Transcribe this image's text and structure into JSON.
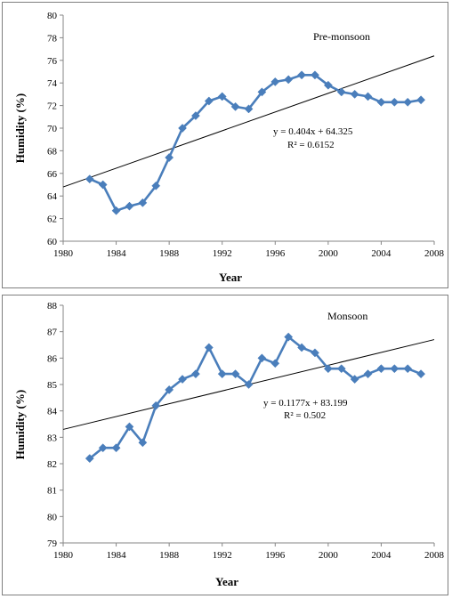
{
  "chart_data": [
    {
      "type": "line",
      "title": "",
      "series_label": "Pre-monsoon",
      "xlabel": "Year",
      "ylabel": "Humidity (%)",
      "xlim": [
        1980,
        2008
      ],
      "ylim": [
        60,
        80
      ],
      "xticks": [
        1980,
        1984,
        1988,
        1992,
        1996,
        2000,
        2004,
        2008
      ],
      "yticks": [
        60,
        62,
        64,
        66,
        68,
        70,
        72,
        74,
        76,
        78,
        80
      ],
      "series": [
        {
          "x": [
            1982,
            1983,
            1984,
            1985,
            1986,
            1987,
            1988,
            1989,
            1990,
            1991,
            1992,
            1993,
            1994,
            1995,
            1996,
            1997,
            1998,
            1999,
            2000,
            2001,
            2002,
            2003,
            2004,
            2005,
            2006,
            2007
          ],
          "values": [
            65.5,
            65.0,
            62.7,
            63.1,
            63.4,
            64.9,
            67.4,
            70.0,
            71.1,
            72.4,
            72.8,
            71.9,
            71.7,
            73.2,
            74.1,
            74.3,
            74.7,
            74.7,
            73.8,
            73.2,
            73.0,
            72.8,
            72.3,
            72.3,
            72.3,
            72.5
          ],
          "color": "#4a7ebb",
          "marker": "diamond"
        }
      ],
      "trendline": {
        "x": [
          1980,
          2008
        ],
        "values": [
          64.8,
          76.4
        ],
        "color": "#000000",
        "equation": "y = 0.404x + 64.325",
        "r2": "R² = 0.6152"
      },
      "grid": false,
      "legend": "none"
    },
    {
      "type": "line",
      "title": "",
      "series_label": "Monsoon",
      "xlabel": "Year",
      "ylabel": "Humidity (%)",
      "xlim": [
        1980,
        2008
      ],
      "ylim": [
        79,
        88
      ],
      "xticks": [
        1980,
        1984,
        1988,
        1992,
        1996,
        2000,
        2004,
        2008
      ],
      "yticks": [
        79,
        80,
        81,
        82,
        83,
        84,
        85,
        86,
        87,
        88
      ],
      "series": [
        {
          "x": [
            1982,
            1983,
            1984,
            1985,
            1986,
            1987,
            1988,
            1989,
            1990,
            1991,
            1992,
            1993,
            1994,
            1995,
            1996,
            1997,
            1998,
            1999,
            2000,
            2001,
            2002,
            2003,
            2004,
            2005,
            2006,
            2007
          ],
          "values": [
            82.2,
            82.6,
            82.6,
            83.4,
            82.8,
            84.2,
            84.8,
            85.2,
            85.4,
            86.4,
            85.4,
            85.4,
            85.0,
            86.0,
            85.8,
            86.8,
            86.4,
            86.2,
            85.6,
            85.6,
            85.2,
            85.4,
            85.6,
            85.6,
            85.6,
            85.4
          ],
          "color": "#4a7ebb",
          "marker": "diamond"
        }
      ],
      "trendline": {
        "x": [
          1980,
          2008
        ],
        "values": [
          83.3,
          86.7
        ],
        "color": "#000000",
        "equation": "y = 0.1177x + 83.199",
        "r2": "R² = 0.502"
      },
      "grid": false,
      "legend": "none"
    }
  ]
}
